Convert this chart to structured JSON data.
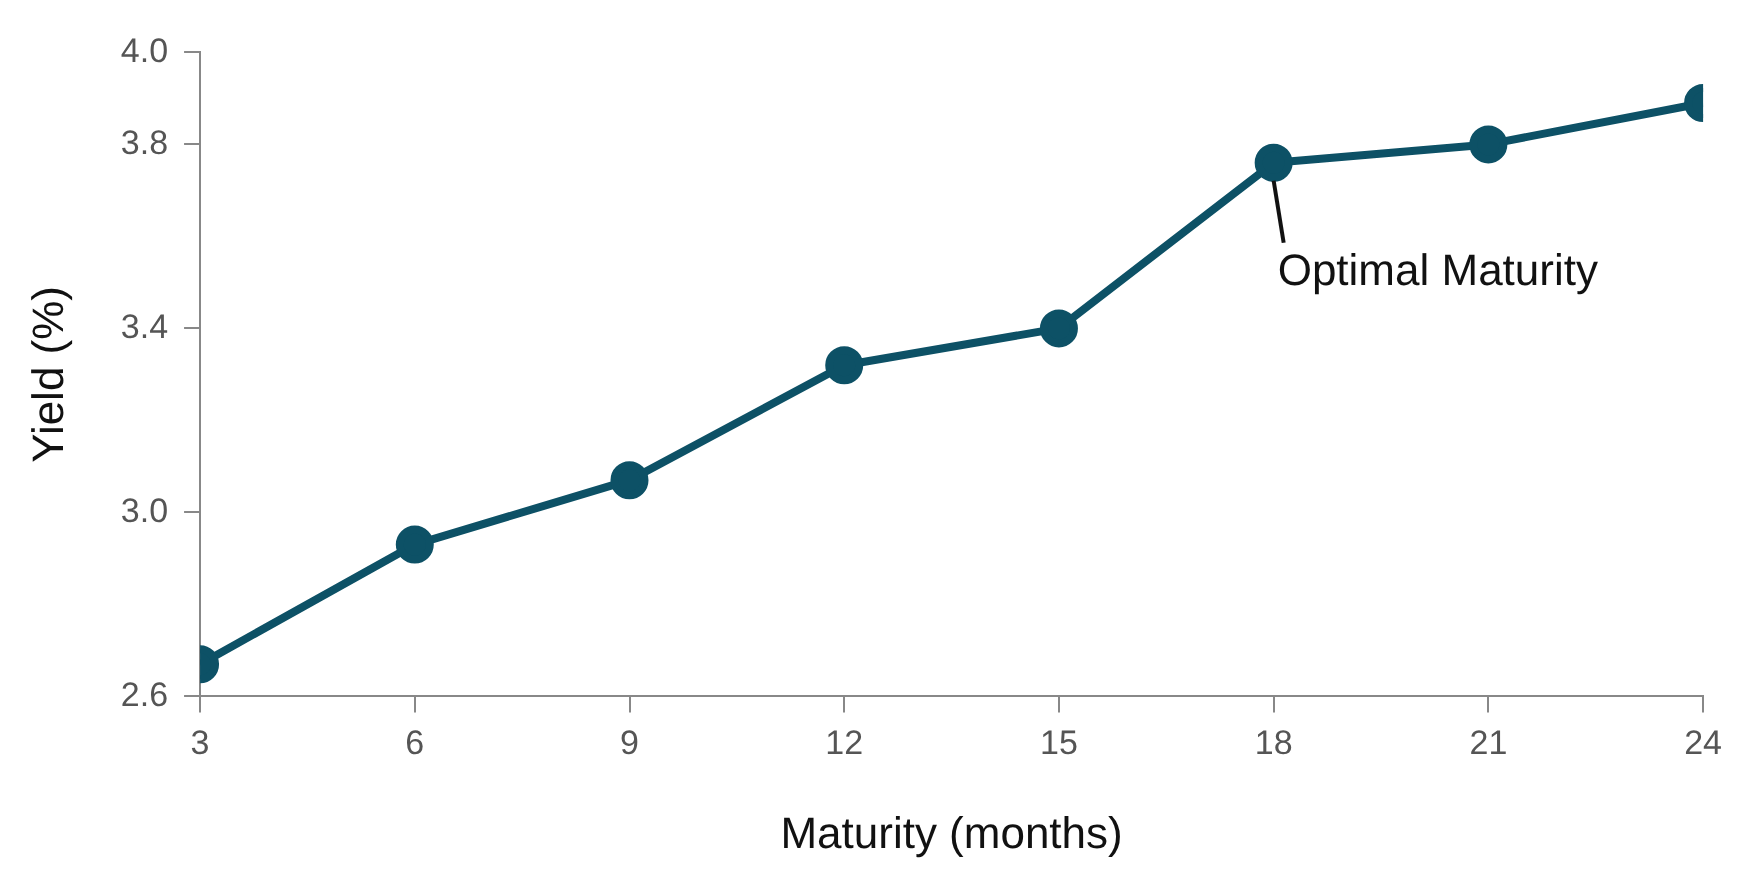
{
  "chart_data": {
    "type": "line",
    "xlabel": "Maturity (months)",
    "ylabel": "Yield (%)",
    "x": [
      3,
      6,
      9,
      12,
      15,
      18,
      21,
      24
    ],
    "series": [
      {
        "color": "#0d5166",
        "values": [
          2.67,
          2.93,
          3.07,
          3.32,
          3.4,
          3.76,
          3.8,
          3.89
        ]
      }
    ],
    "xlim": [
      3,
      24
    ],
    "xticks": [
      3,
      6,
      9,
      12,
      15,
      18,
      21,
      24
    ],
    "ylim": [
      2.6,
      4.0
    ],
    "yticks": [
      2.6,
      {
        "value": 3.0,
        "label": "3.0"
      },
      3.4,
      3.8,
      {
        "value": 4.0,
        "label": "4.0"
      }
    ],
    "grid": false,
    "legend": false,
    "marker": "circle",
    "line_style": "solid",
    "annotations": [
      {
        "text": "Optimal Maturity",
        "x": 18,
        "y": 3.76
      }
    ]
  }
}
